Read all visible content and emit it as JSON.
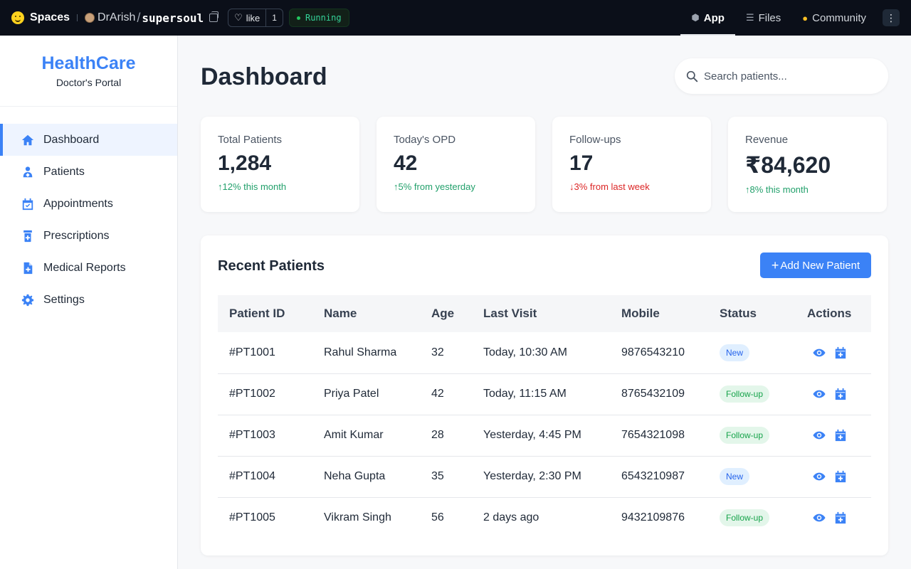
{
  "topbar": {
    "spaces_label": "Spaces",
    "owner": "DrArish",
    "separator": "/",
    "repo": "supersoul",
    "like_label": "like",
    "like_count": "1",
    "status": "Running",
    "tabs": [
      {
        "label": "App",
        "icon": "cube-icon",
        "active": true
      },
      {
        "label": "Files",
        "icon": "files-icon",
        "active": false
      },
      {
        "label": "Community",
        "icon": "community-icon",
        "active": false
      }
    ],
    "more_label": "⋮"
  },
  "sidebar": {
    "brand_name": "HealthCare",
    "brand_sub": "Doctor's Portal",
    "items": [
      {
        "label": "Dashboard",
        "icon": "home-icon",
        "active": true
      },
      {
        "label": "Patients",
        "icon": "patient-icon",
        "active": false
      },
      {
        "label": "Appointments",
        "icon": "calendar-check-icon",
        "active": false
      },
      {
        "label": "Prescriptions",
        "icon": "prescription-bottle-icon",
        "active": false
      },
      {
        "label": "Medical Reports",
        "icon": "file-medical-icon",
        "active": false
      },
      {
        "label": "Settings",
        "icon": "gear-icon",
        "active": false
      }
    ]
  },
  "header": {
    "title": "Dashboard",
    "search_placeholder": "Search patients..."
  },
  "stats": [
    {
      "label": "Total Patients",
      "value": "1,284",
      "arrow": "↑",
      "change": "12% this month",
      "trend": "up"
    },
    {
      "label": "Today's OPD",
      "value": "42",
      "arrow": "↑",
      "change": "5% from yesterday",
      "trend": "up"
    },
    {
      "label": "Follow-ups",
      "value": "17",
      "arrow": "↓",
      "change": "3% from last week",
      "trend": "down"
    },
    {
      "label": "Revenue",
      "value": "₹84,620",
      "arrow": "↑",
      "change": "8% this month",
      "trend": "up"
    }
  ],
  "recent": {
    "title": "Recent Patients",
    "add_button": "Add New Patient",
    "add_plus": "+",
    "columns": [
      "Patient ID",
      "Name",
      "Age",
      "Last Visit",
      "Mobile",
      "Status",
      "Actions"
    ],
    "rows": [
      {
        "id": "#PT1001",
        "name": "Rahul Sharma",
        "age": "32",
        "last_visit": "Today, 10:30 AM",
        "mobile": "9876543210",
        "status": "New"
      },
      {
        "id": "#PT1002",
        "name": "Priya Patel",
        "age": "42",
        "last_visit": "Today, 11:15 AM",
        "mobile": "8765432109",
        "status": "Follow-up"
      },
      {
        "id": "#PT1003",
        "name": "Amit Kumar",
        "age": "28",
        "last_visit": "Yesterday, 4:45 PM",
        "mobile": "7654321098",
        "status": "Follow-up"
      },
      {
        "id": "#PT1004",
        "name": "Neha Gupta",
        "age": "35",
        "last_visit": "Yesterday, 2:30 PM",
        "mobile": "6543210987",
        "status": "New"
      },
      {
        "id": "#PT1005",
        "name": "Vikram Singh",
        "age": "56",
        "last_visit": "2 days ago",
        "mobile": "9432109876",
        "status": "Follow-up"
      }
    ]
  },
  "colors": {
    "accent": "#3b82f6",
    "positive": "#22a06b",
    "negative": "#dc2626",
    "topbar_bg": "#0b0f19"
  }
}
